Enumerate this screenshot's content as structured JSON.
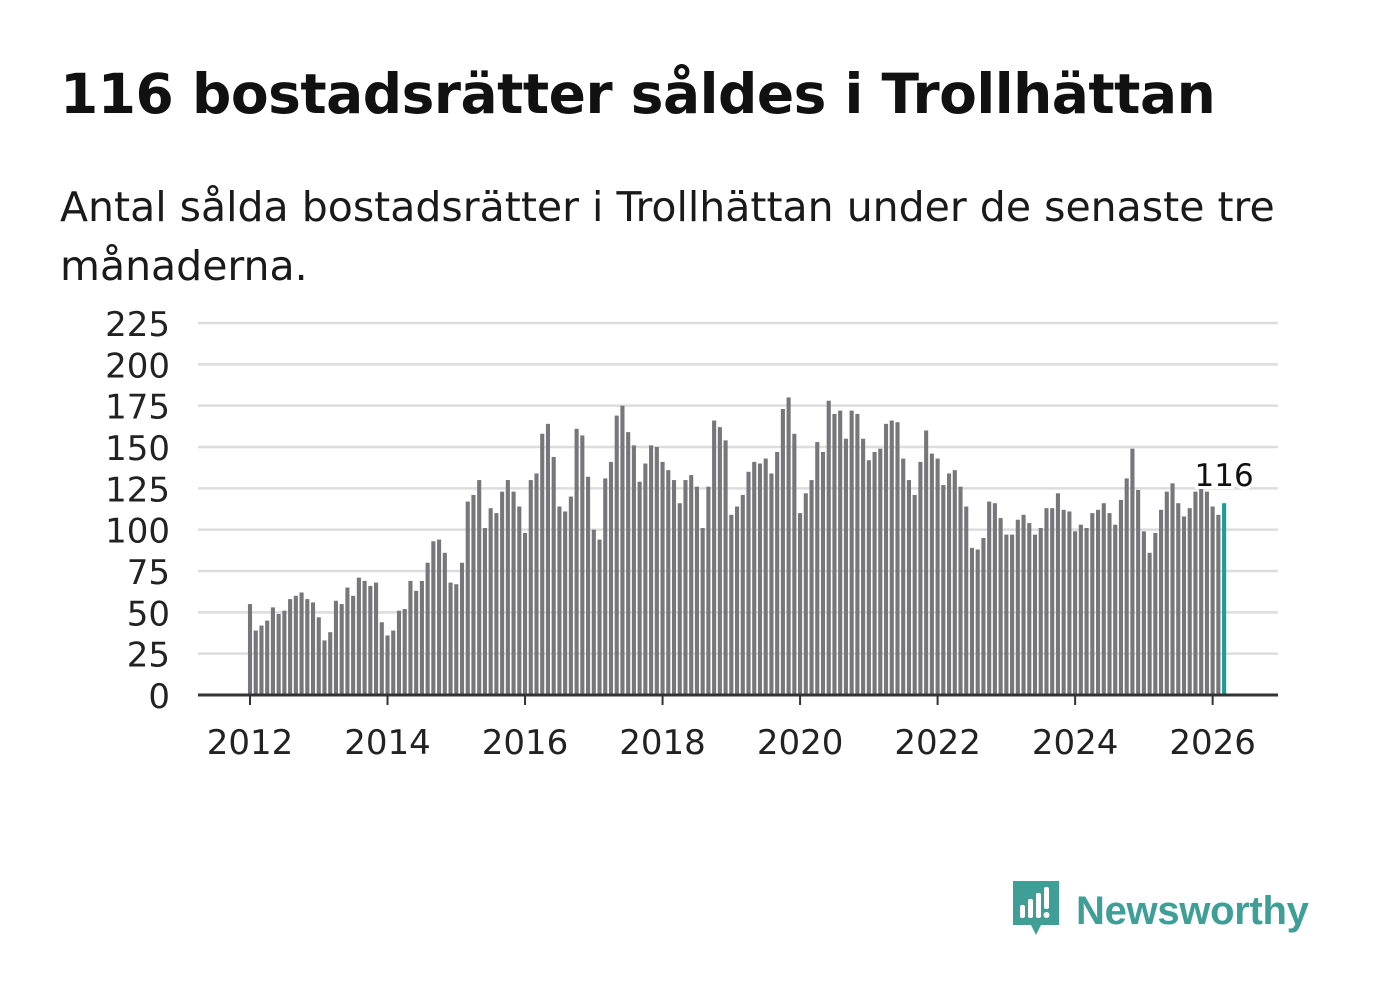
{
  "title": "116 bostadsrätter såldes i Trollhättan",
  "subtitle": "Antal sålda bostadsrätter i Trollhättan under de senaste tre månaderna.",
  "brand": {
    "name": "Newsworthy",
    "color": "#3f9e95",
    "icon": "newsworthy-logo-icon"
  },
  "colors": {
    "bar": "#77767b",
    "highlight": "#1a9e96",
    "grid": "#dddddd",
    "axis": "#333333"
  },
  "chart_data": {
    "type": "bar",
    "title": "",
    "xlabel": "",
    "ylabel": "",
    "ylim": [
      0,
      225
    ],
    "yticks": [
      0,
      25,
      50,
      75,
      100,
      125,
      150,
      175,
      200,
      225
    ],
    "xticks": [
      "2012",
      "2014",
      "2016",
      "2018",
      "2020",
      "2022",
      "2024",
      "2026"
    ],
    "x_start": "2012-01",
    "grid": true,
    "annotation": {
      "label": "116",
      "index": 170
    },
    "highlight_index": 170,
    "values": [
      55,
      39,
      42,
      45,
      53,
      49,
      51,
      58,
      60,
      62,
      58,
      56,
      47,
      33,
      38,
      57,
      55,
      65,
      60,
      71,
      69,
      66,
      68,
      44,
      36,
      39,
      51,
      52,
      69,
      63,
      69,
      80,
      93,
      94,
      86,
      68,
      67,
      80,
      117,
      121,
      130,
      101,
      113,
      110,
      123,
      130,
      123,
      114,
      98,
      130,
      134,
      158,
      164,
      144,
      114,
      111,
      120,
      161,
      157,
      132,
      100,
      94,
      131,
      141,
      169,
      175,
      159,
      151,
      129,
      140,
      151,
      150,
      141,
      136,
      130,
      116,
      130,
      133,
      126,
      101,
      126,
      166,
      162,
      154,
      109,
      114,
      121,
      135,
      141,
      140,
      143,
      134,
      147,
      173,
      180,
      158,
      110,
      122,
      130,
      153,
      147,
      178,
      170,
      172,
      155,
      172,
      170,
      155,
      142,
      147,
      149,
      164,
      166,
      165,
      143,
      130,
      121,
      141,
      160,
      146,
      143,
      127,
      134,
      136,
      126,
      114,
      89,
      88,
      95,
      117,
      116,
      107,
      97,
      97,
      106,
      109,
      104,
      97,
      101,
      113,
      113,
      122,
      112,
      111,
      99,
      103,
      101,
      110,
      112,
      116,
      110,
      103,
      118,
      131,
      149,
      124,
      99,
      86,
      98,
      112,
      123,
      128,
      116,
      108,
      113,
      123,
      126,
      123,
      114,
      109,
      116
    ]
  }
}
